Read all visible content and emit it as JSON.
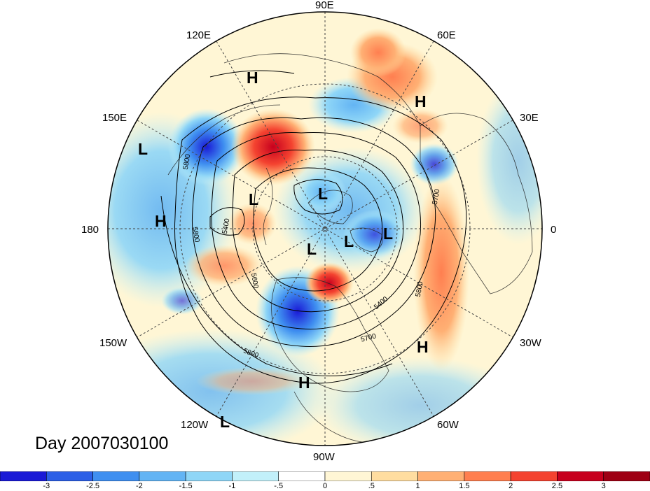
{
  "title": "Day 2007030100",
  "longitude_labels": [
    "90E",
    "60E",
    "30E",
    "0",
    "30W",
    "60W",
    "90W",
    "120W",
    "150W",
    "180",
    "150E",
    "120E"
  ],
  "contour_labels": [
    "5800",
    "5800",
    "5400",
    "5600",
    "5800",
    "5700",
    "5400",
    "5800",
    "5700",
    "5800"
  ],
  "pressure_centers": [
    {
      "type": "H"
    },
    {
      "type": "H"
    },
    {
      "type": "L"
    },
    {
      "type": "H"
    },
    {
      "type": "L"
    },
    {
      "type": "L"
    },
    {
      "type": "L"
    },
    {
      "type": "L"
    },
    {
      "type": "L"
    },
    {
      "type": "H"
    },
    {
      "type": "H"
    },
    {
      "type": "L"
    }
  ],
  "colorbar": {
    "ticks": [
      "-3",
      "-2.5",
      "-2",
      "-1.5",
      "-1",
      "-.5",
      "0",
      ".5",
      "1",
      "1.5",
      "2",
      "2.5",
      "3"
    ],
    "colors": [
      "#1a1ad6",
      "#2c5fe6",
      "#3f8ff0",
      "#63b4f4",
      "#8fd6f7",
      "#c2f0fa",
      "#ffffff",
      "#fff6d5",
      "#ffdda0",
      "#ffb074",
      "#ff7f50",
      "#f44330",
      "#c7001e",
      "#9e0014"
    ]
  }
}
